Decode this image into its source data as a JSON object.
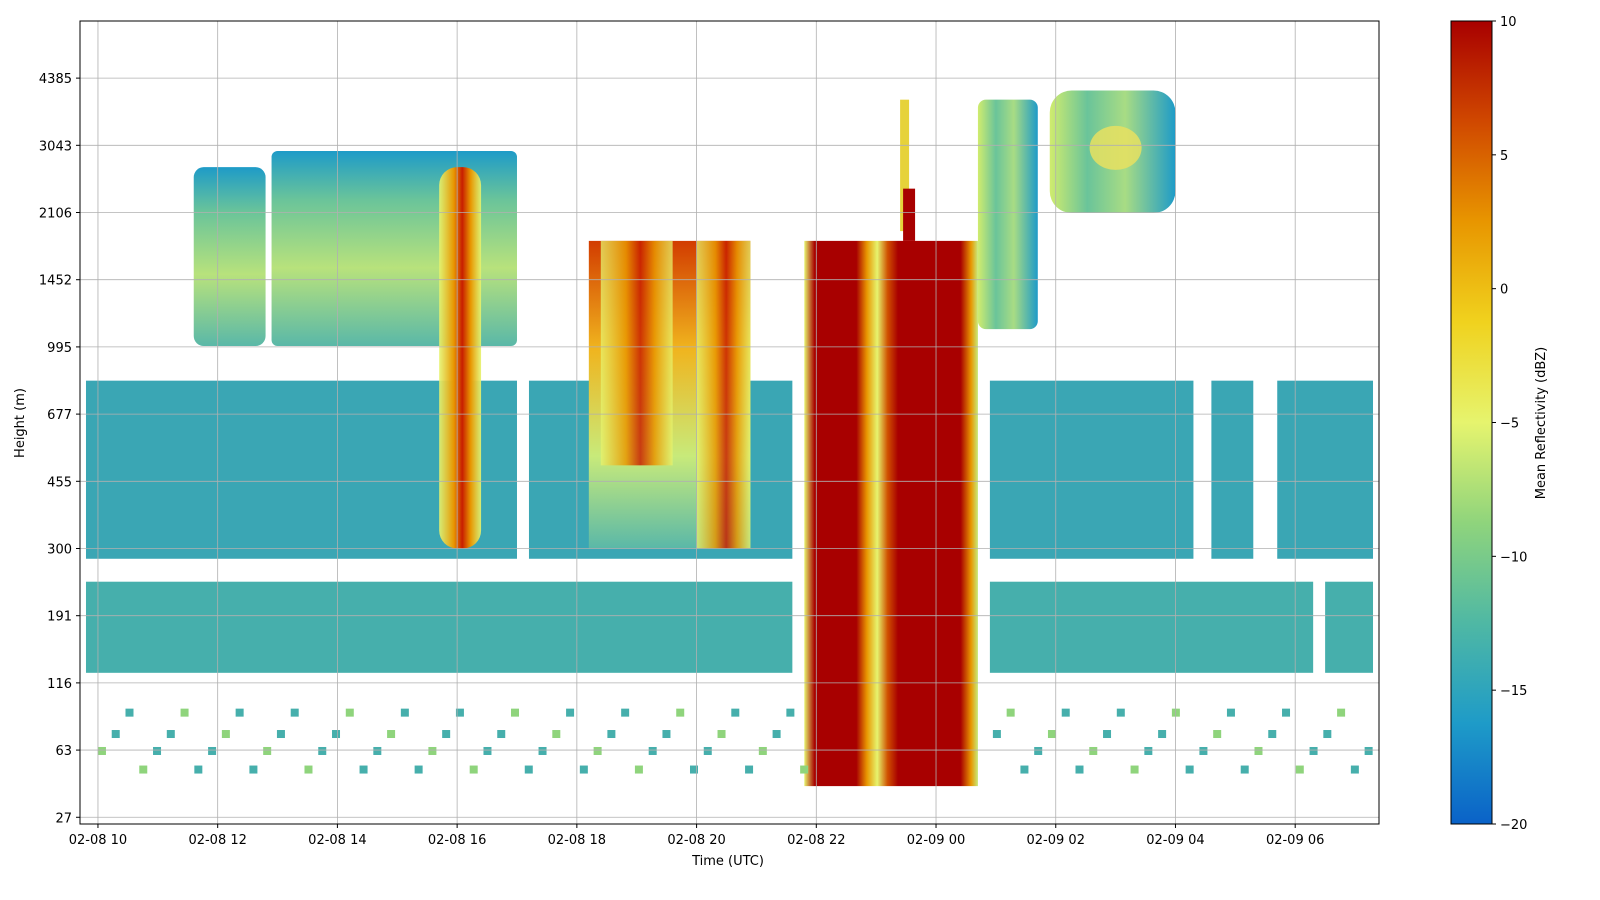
{
  "chart_data": {
    "type": "heatmap",
    "title": "",
    "xlabel": "Time (UTC)",
    "ylabel": "Height (m)",
    "x_range_hours": [
      9.7,
      31.4
    ],
    "x_ticks": [
      {
        "hour": 10,
        "label": "02-08 10"
      },
      {
        "hour": 12,
        "label": "02-08 12"
      },
      {
        "hour": 14,
        "label": "02-08 14"
      },
      {
        "hour": 16,
        "label": "02-08 16"
      },
      {
        "hour": 18,
        "label": "02-08 18"
      },
      {
        "hour": 20,
        "label": "02-08 20"
      },
      {
        "hour": 22,
        "label": "02-08 22"
      },
      {
        "hour": 24,
        "label": "02-09 00"
      },
      {
        "hour": 26,
        "label": "02-09 02"
      },
      {
        "hour": 28,
        "label": "02-09 04"
      },
      {
        "hour": 30,
        "label": "02-09 06"
      }
    ],
    "y_ticks": [
      "27",
      "63",
      "116",
      "191",
      "300",
      "455",
      "677",
      "995",
      "1452",
      "2106",
      "3043",
      "4385"
    ],
    "y_index_range": [
      -0.1,
      11.85
    ],
    "grid": true,
    "colorbar": {
      "label": "Mean Reflectivity (dBZ)",
      "min": -20,
      "max": 10,
      "ticks": [
        "10",
        "5",
        "0",
        "−5",
        "−10",
        "−15",
        "−20"
      ],
      "colormap": [
        "#0a62c8",
        "#1e9bc8",
        "#4fb8a4",
        "#8fd47c",
        "#e6f46e",
        "#f0d21e",
        "#e89600",
        "#d04800",
        "#a80000"
      ]
    },
    "features": [
      {
        "name": "low cloud layer",
        "time_start": 9.8,
        "time_end": 31.3,
        "height_top_m": 820,
        "height_base_m": 280,
        "dbz": -15
      },
      {
        "name": "near-surface layer",
        "time_start": 9.8,
        "time_end": 31.3,
        "height_top_m": 240,
        "height_base_m": 125,
        "dbz": -15
      },
      {
        "name": "upper cloud",
        "time_start": 11.5,
        "time_end": 17.0,
        "height_top_m": 2950,
        "height_base_m": 1000,
        "dbz": -9
      },
      {
        "name": "echo core 1",
        "time_start": 15.7,
        "time_end": 16.4,
        "height_top_m": 2700,
        "height_base_m": 300,
        "dbz": 2
      },
      {
        "name": "precipitation band",
        "time_start": 18.2,
        "time_end": 20.9,
        "height_top_m": 1800,
        "height_base_m": 300,
        "dbz": 3
      },
      {
        "name": "heavy precipitation",
        "time_start": 21.8,
        "time_end": 24.7,
        "height_top_m": 1800,
        "height_base_m": 40,
        "dbz": 9
      },
      {
        "name": "upper cloud 2",
        "time_start": 24.7,
        "time_end": 28.0,
        "height_top_m": 4100,
        "height_base_m": 1100,
        "dbz": -8
      }
    ]
  }
}
